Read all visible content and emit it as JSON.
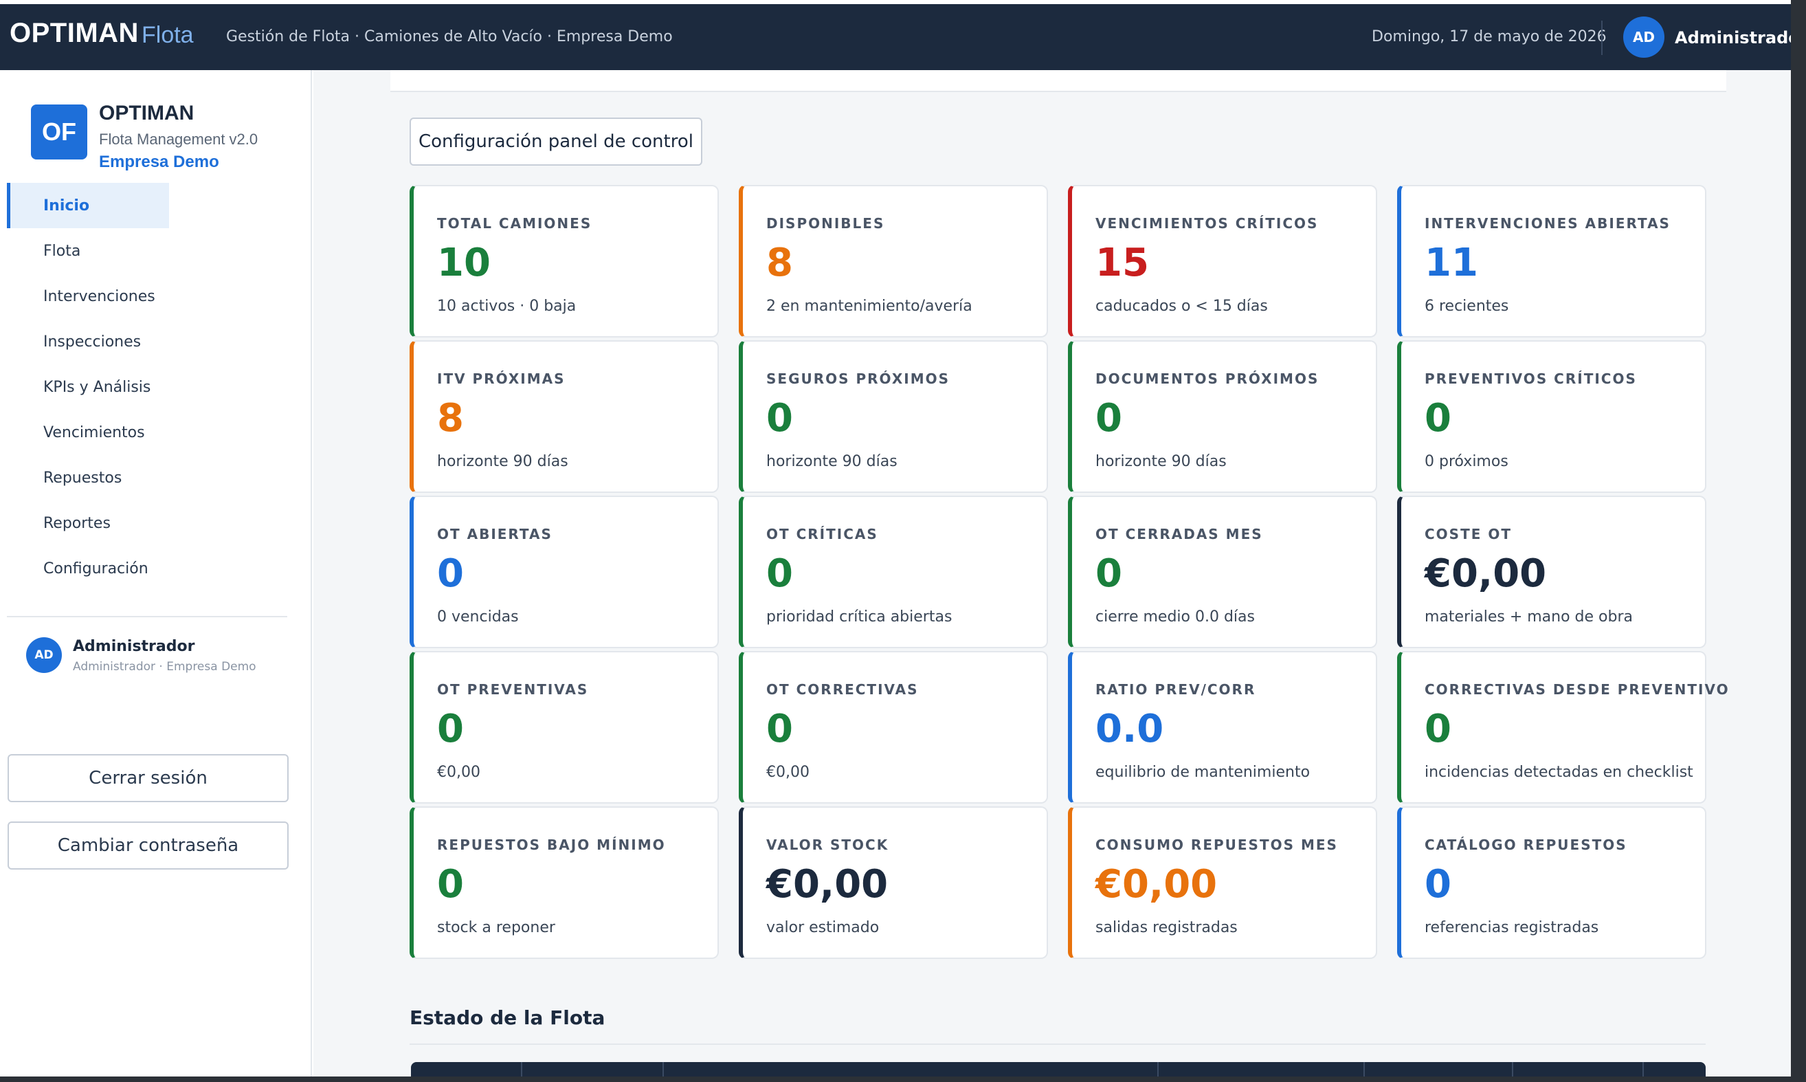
{
  "header": {
    "brand": "OPTIMAN",
    "brand_sub": "Flota",
    "breadcrumb": "Gestión de Flota · Camiones de Alto Vacío · Empresa Demo",
    "date": "Domingo, 17 de mayo de 2026",
    "avatar_initials": "AD",
    "user_name": "Administrador"
  },
  "sidebar": {
    "logo_initials": "OF",
    "app_name": "OPTIMAN",
    "app_version": "Flota Management v2.0",
    "company": "Empresa Demo",
    "items": [
      {
        "label": "Inicio",
        "active": true
      },
      {
        "label": "Flota"
      },
      {
        "label": "Intervenciones"
      },
      {
        "label": "Inspecciones"
      },
      {
        "label": "KPIs y Análisis"
      },
      {
        "label": "Vencimientos"
      },
      {
        "label": "Repuestos"
      },
      {
        "label": "Reportes"
      },
      {
        "label": "Configuración"
      }
    ],
    "user": {
      "initials": "AD",
      "name": "Administrador",
      "role": "Administrador · Empresa Demo"
    },
    "logout_label": "Cerrar sesión",
    "change_password_label": "Cambiar contraseña"
  },
  "main": {
    "config_button": "Configuración panel de control",
    "cards": [
      {
        "label": "TOTAL CAMIONES",
        "value": "10",
        "sub": "10 activos · 0 baja",
        "accent": "#1a7f3c",
        "value_color": "#1a7f3c"
      },
      {
        "label": "DISPONIBLES",
        "value": "8",
        "sub": "2 en mantenimiento/avería",
        "accent": "#e8720c",
        "value_color": "#e8720c"
      },
      {
        "label": "VENCIMIENTOS CRÍTICOS",
        "value": "15",
        "sub": "caducados o < 15 días",
        "accent": "#c81e1e",
        "value_color": "#c81e1e"
      },
      {
        "label": "INTERVENCIONES ABIERTAS",
        "value": "11",
        "sub": "6 recientes",
        "accent": "#1e6fd9",
        "value_color": "#1e6fd9"
      },
      {
        "label": "ITV PRÓXIMAS",
        "value": "8",
        "sub": "horizonte 90 días",
        "accent": "#e8720c",
        "value_color": "#e8720c"
      },
      {
        "label": "SEGUROS PRÓXIMOS",
        "value": "0",
        "sub": "horizonte 90 días",
        "accent": "#1a7f3c",
        "value_color": "#1a7f3c"
      },
      {
        "label": "DOCUMENTOS PRÓXIMOS",
        "value": "0",
        "sub": "horizonte 90 días",
        "accent": "#1a7f3c",
        "value_color": "#1a7f3c"
      },
      {
        "label": "PREVENTIVOS CRÍTICOS",
        "value": "0",
        "sub": "0 próximos",
        "accent": "#1a7f3c",
        "value_color": "#1a7f3c"
      },
      {
        "label": "OT ABIERTAS",
        "value": "0",
        "sub": "0 vencidas",
        "accent": "#1e6fd9",
        "value_color": "#1e6fd9"
      },
      {
        "label": "OT CRÍTICAS",
        "value": "0",
        "sub": "prioridad crítica abiertas",
        "accent": "#1a7f3c",
        "value_color": "#1a7f3c"
      },
      {
        "label": "OT CERRADAS MES",
        "value": "0",
        "sub": "cierre medio 0.0 días",
        "accent": "#1a7f3c",
        "value_color": "#1a7f3c"
      },
      {
        "label": "COSTE OT",
        "value": "€0,00",
        "sub": "materiales + mano de obra",
        "accent": "#1c2a3e",
        "value_color": "#1c2a3e"
      },
      {
        "label": "OT PREVENTIVAS",
        "value": "0",
        "sub": "€0,00",
        "accent": "#1a7f3c",
        "value_color": "#1a7f3c"
      },
      {
        "label": "OT CORRECTIVAS",
        "value": "0",
        "sub": "€0,00",
        "accent": "#1a7f3c",
        "value_color": "#1a7f3c"
      },
      {
        "label": "RATIO PREV/CORR",
        "value": "0.0",
        "sub": "equilibrio de mantenimiento",
        "accent": "#1e6fd9",
        "value_color": "#1e6fd9"
      },
      {
        "label": "CORRECTIVAS DESDE PREVENTIVO",
        "value": "0",
        "sub": "incidencias detectadas en checklist",
        "accent": "#1a7f3c",
        "value_color": "#1a7f3c"
      },
      {
        "label": "REPUESTOS BAJO MÍNIMO",
        "value": "0",
        "sub": "stock a reponer",
        "accent": "#1a7f3c",
        "value_color": "#1a7f3c"
      },
      {
        "label": "VALOR STOCK",
        "value": "€0,00",
        "sub": "valor estimado",
        "accent": "#1c2a3e",
        "value_color": "#1c2a3e"
      },
      {
        "label": "CONSUMO REPUESTOS MES",
        "value": "€0,00",
        "sub": "salidas registradas",
        "accent": "#e8720c",
        "value_color": "#e8720c"
      },
      {
        "label": "CATÁLOGO REPUESTOS",
        "value": "0",
        "sub": "referencias registradas",
        "accent": "#1e6fd9",
        "value_color": "#1e6fd9"
      }
    ],
    "section_title": "Estado de la Flota"
  }
}
